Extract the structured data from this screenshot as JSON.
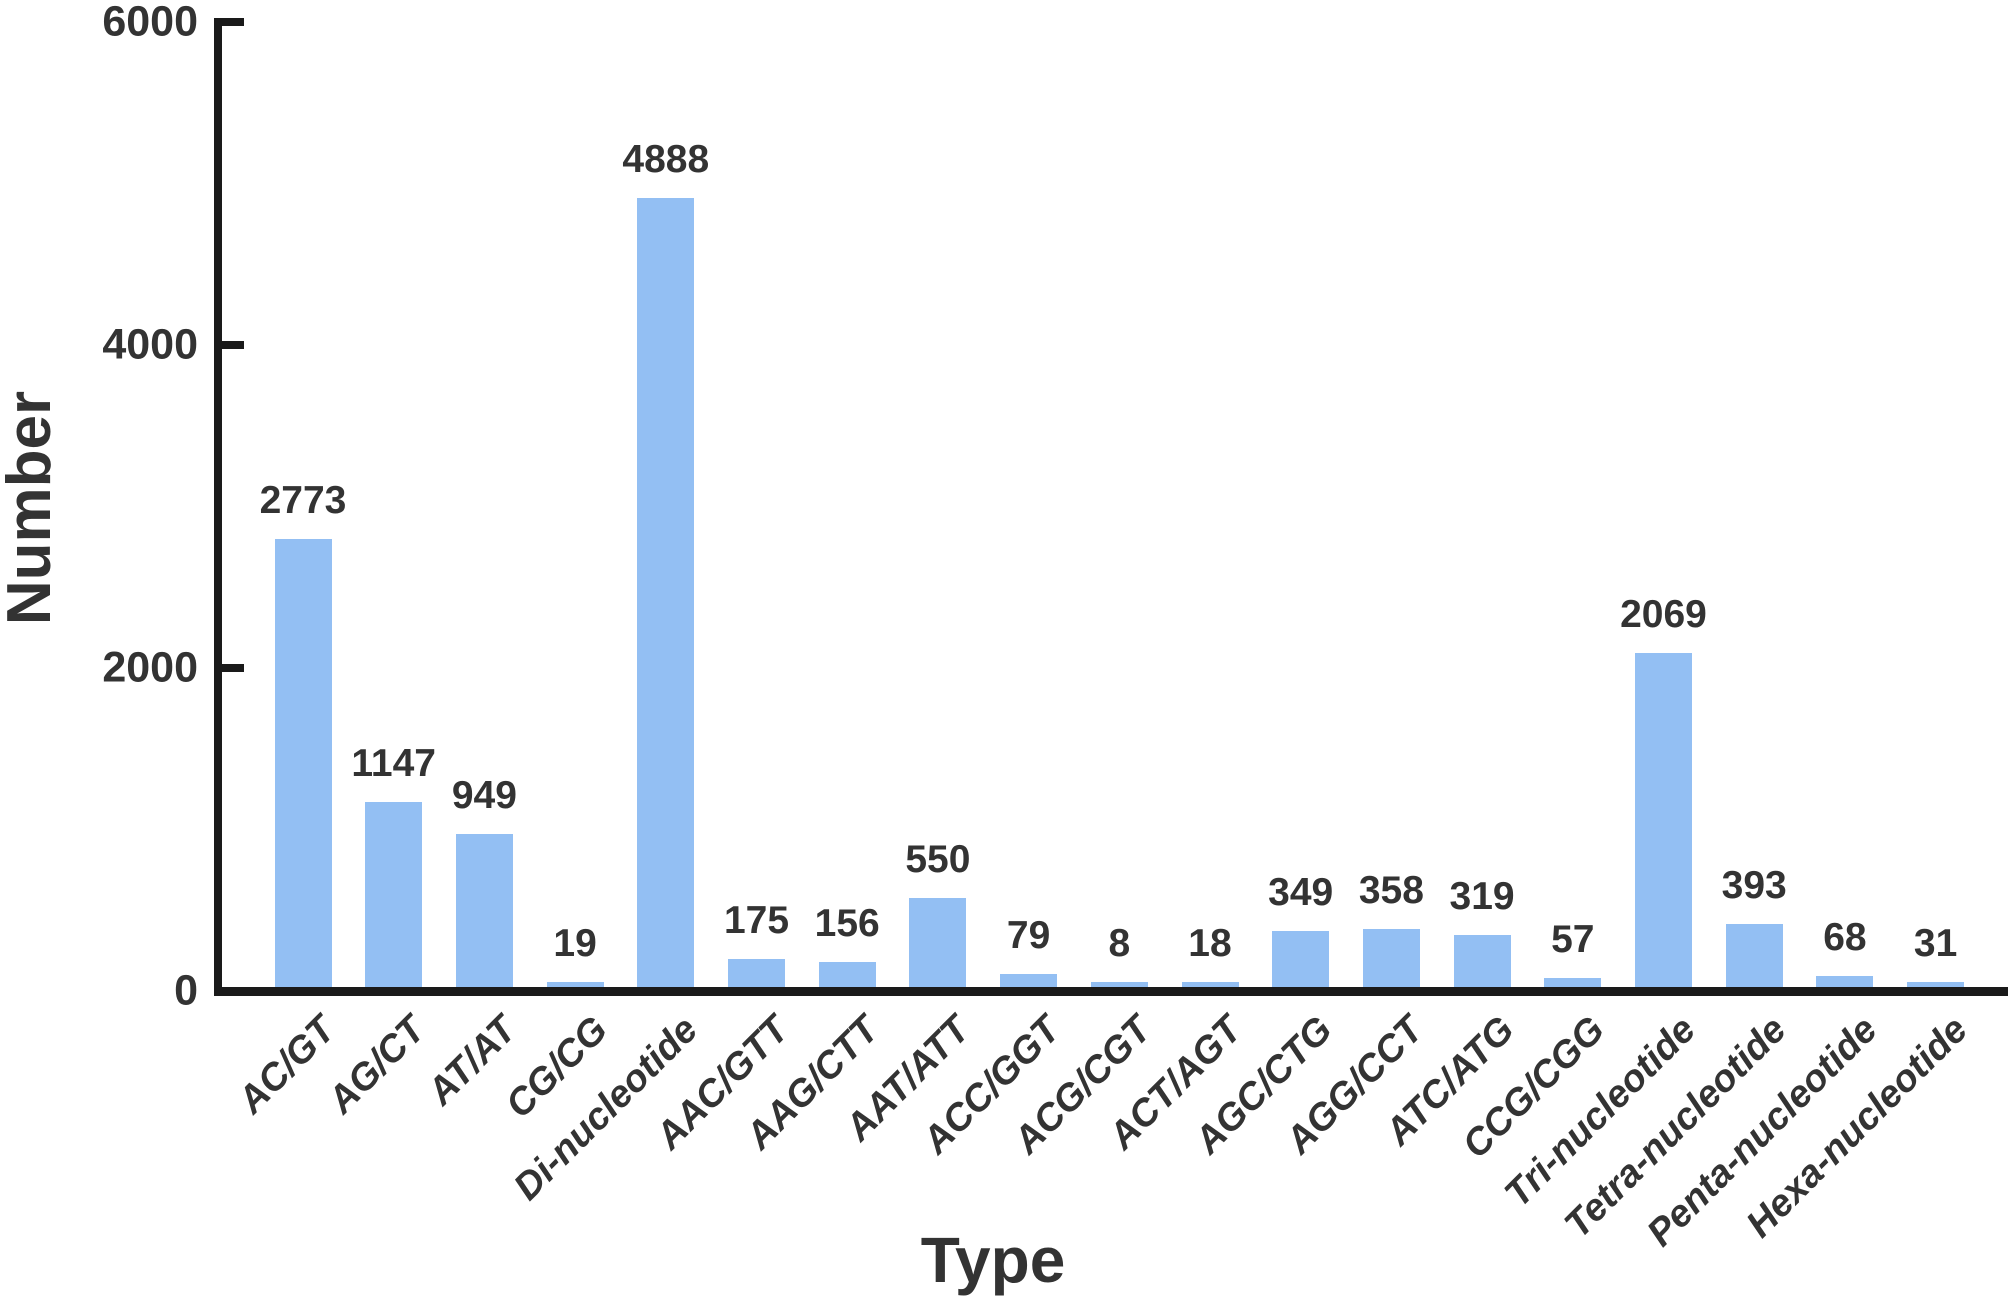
{
  "chart_data": {
    "type": "bar",
    "title": "",
    "xlabel": "Type",
    "ylabel": "Number",
    "categories": [
      "AC/GT",
      "AG/CT",
      "AT/AT",
      "CG/CG",
      "Di-nucleotide",
      "AAC/GTT",
      "AAG/CTT",
      "AAT/ATT",
      "ACC/GGT",
      "ACG/CGT",
      "ACT/AGT",
      "AGC/CTG",
      "AGG/CCT",
      "ATC/ATG",
      "CCG/CGG",
      "Tri-nucleotide",
      "Tetra-nucleotide",
      "Penta-nucleotide",
      "Hexa-nucleotide"
    ],
    "values": [
      2773,
      1147,
      949,
      19,
      4888,
      175,
      156,
      550,
      79,
      8,
      18,
      349,
      358,
      319,
      57,
      2069,
      393,
      68,
      31
    ],
    "ylim": [
      0,
      6000
    ],
    "yticks": [
      0,
      2000,
      4000,
      6000
    ],
    "xtick_rotation": 45,
    "tick_direction": "in",
    "grid": false,
    "legend": null,
    "bar_value_labels": true,
    "bar_color": "#93BFF3",
    "axis_color": "#1a1a1a",
    "text_color": "#333333"
  }
}
